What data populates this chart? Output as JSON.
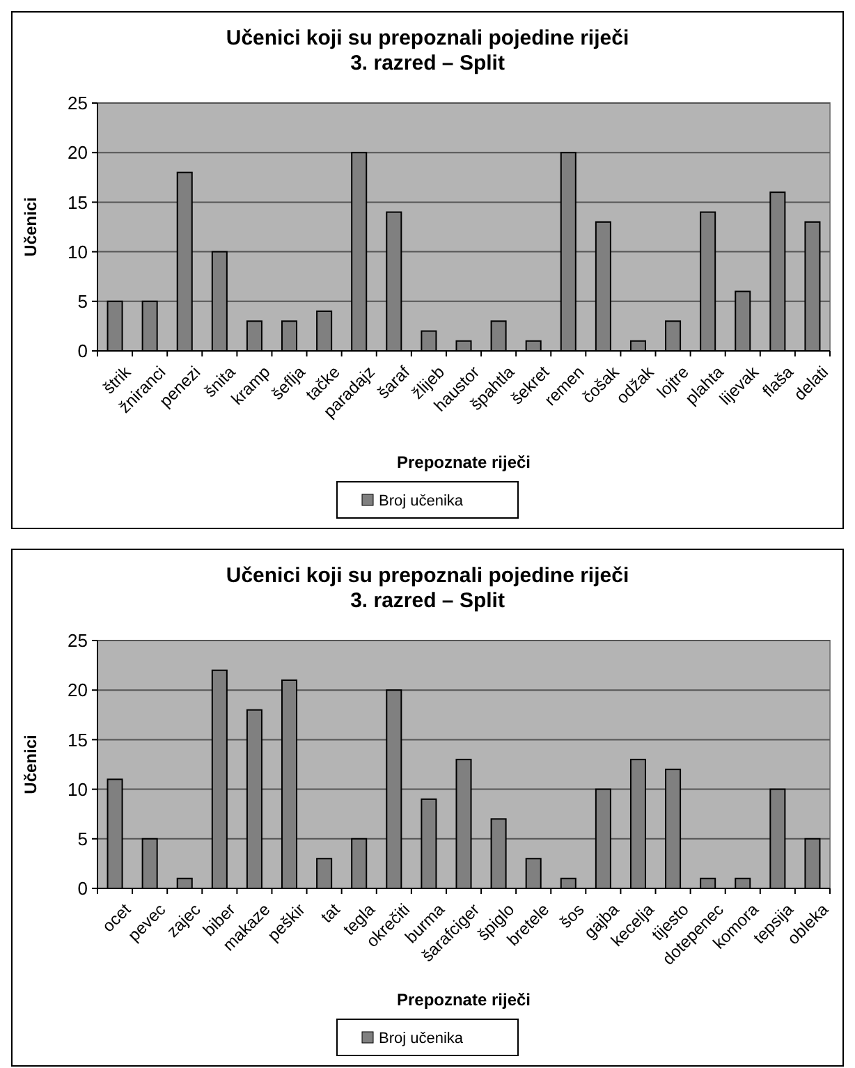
{
  "chart_data": [
    {
      "type": "bar",
      "title": "Učenici koji su prepoznali pojedine riječi",
      "subtitle": "3. razred – Split",
      "xlabel": "Prepoznate riječi",
      "ylabel": "Učenici",
      "categories": [
        "štrik",
        "žniranci",
        "penezi",
        "šnita",
        "kramp",
        "šeflja",
        "tačke",
        "paradajz",
        "šaraf",
        "žlijeb",
        "haustor",
        "špahtla",
        "šekret",
        "remen",
        "čošak",
        "odžak",
        "lojtre",
        "plahta",
        "lijevak",
        "flaša",
        "delati"
      ],
      "series": [
        {
          "name": "Broj učenika",
          "color": "#808080",
          "values": [
            5,
            5,
            18,
            10,
            3,
            3,
            4,
            20,
            14,
            2,
            1,
            3,
            1,
            20,
            13,
            1,
            3,
            14,
            6,
            16,
            13
          ]
        }
      ],
      "ylim": [
        0,
        25
      ],
      "yticks": [
        0,
        5,
        10,
        15,
        20,
        25
      ],
      "grid": "y",
      "legend": "bottom"
    },
    {
      "type": "bar",
      "title": "Učenici koji su prepoznali pojedine riječi",
      "subtitle": "3. razred – Split",
      "xlabel": "Prepoznate riječi",
      "ylabel": "Učenici",
      "categories": [
        "ocet",
        "pevec",
        "zajec",
        "biber",
        "makaze",
        "peškir",
        "tat",
        "tegla",
        "okrečiti",
        "burma",
        "šarafciger",
        "špiglo",
        "bretele",
        "šos",
        "gajba",
        "kecelja",
        "tijesto",
        "dotepenec",
        "komora",
        "tepsija",
        "obleka"
      ],
      "series": [
        {
          "name": "Broj učenika",
          "color": "#808080",
          "values": [
            11,
            5,
            1,
            22,
            18,
            21,
            3,
            5,
            20,
            9,
            13,
            7,
            3,
            1,
            10,
            13,
            12,
            1,
            1,
            10,
            5
          ]
        }
      ],
      "ylim": [
        0,
        25
      ],
      "yticks": [
        0,
        5,
        10,
        15,
        20,
        25
      ],
      "grid": "y",
      "legend": "bottom"
    }
  ]
}
